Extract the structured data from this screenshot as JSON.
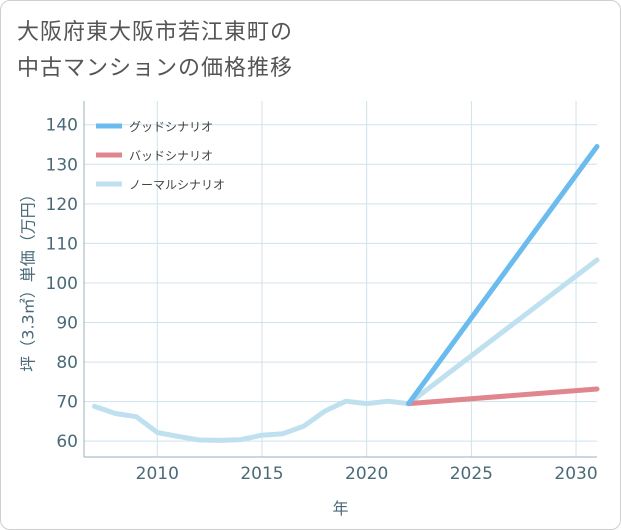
{
  "page": {
    "title": "大阪府東大阪市若江東町の\n中古マンションの価格推移"
  },
  "colors": {
    "good": "#6bbbee",
    "bad": "#e0868e",
    "normal": "#bfe0ef",
    "grid": "#cfe3ec",
    "axis": "#9bb0ba"
  },
  "chart_data": {
    "type": "line",
    "title": "大阪府東大阪市若江東町の中古マンションの価格推移",
    "xlabel": "年",
    "ylabel": "坪（3.3㎡）単価（万円）",
    "xlim": [
      2006.5,
      2031
    ],
    "ylim": [
      56,
      146
    ],
    "xticks": [
      2010,
      2015,
      2020,
      2025,
      2030
    ],
    "yticks": [
      60,
      70,
      80,
      90,
      100,
      110,
      120,
      130,
      140
    ],
    "legend_position": "top-left",
    "series": [
      {
        "name": "グッドシナリオ",
        "color_key": "good",
        "x": [
          2022,
          2031
        ],
        "y": [
          69.5,
          134.5
        ]
      },
      {
        "name": "バッドシナリオ",
        "color_key": "bad",
        "x": [
          2022,
          2031
        ],
        "y": [
          69.5,
          73.2
        ]
      },
      {
        "name": "ノーマルシナリオ",
        "color_key": "normal",
        "x": [
          2007,
          2008,
          2009,
          2010,
          2011,
          2012,
          2013,
          2014,
          2015,
          2016,
          2017,
          2018,
          2019,
          2020,
          2021,
          2022,
          2031
        ],
        "y": [
          68.8,
          67.0,
          66.2,
          62.2,
          61.2,
          60.3,
          60.2,
          60.4,
          61.5,
          61.9,
          63.8,
          67.6,
          70.1,
          69.5,
          70.1,
          69.5,
          105.8
        ]
      }
    ]
  }
}
